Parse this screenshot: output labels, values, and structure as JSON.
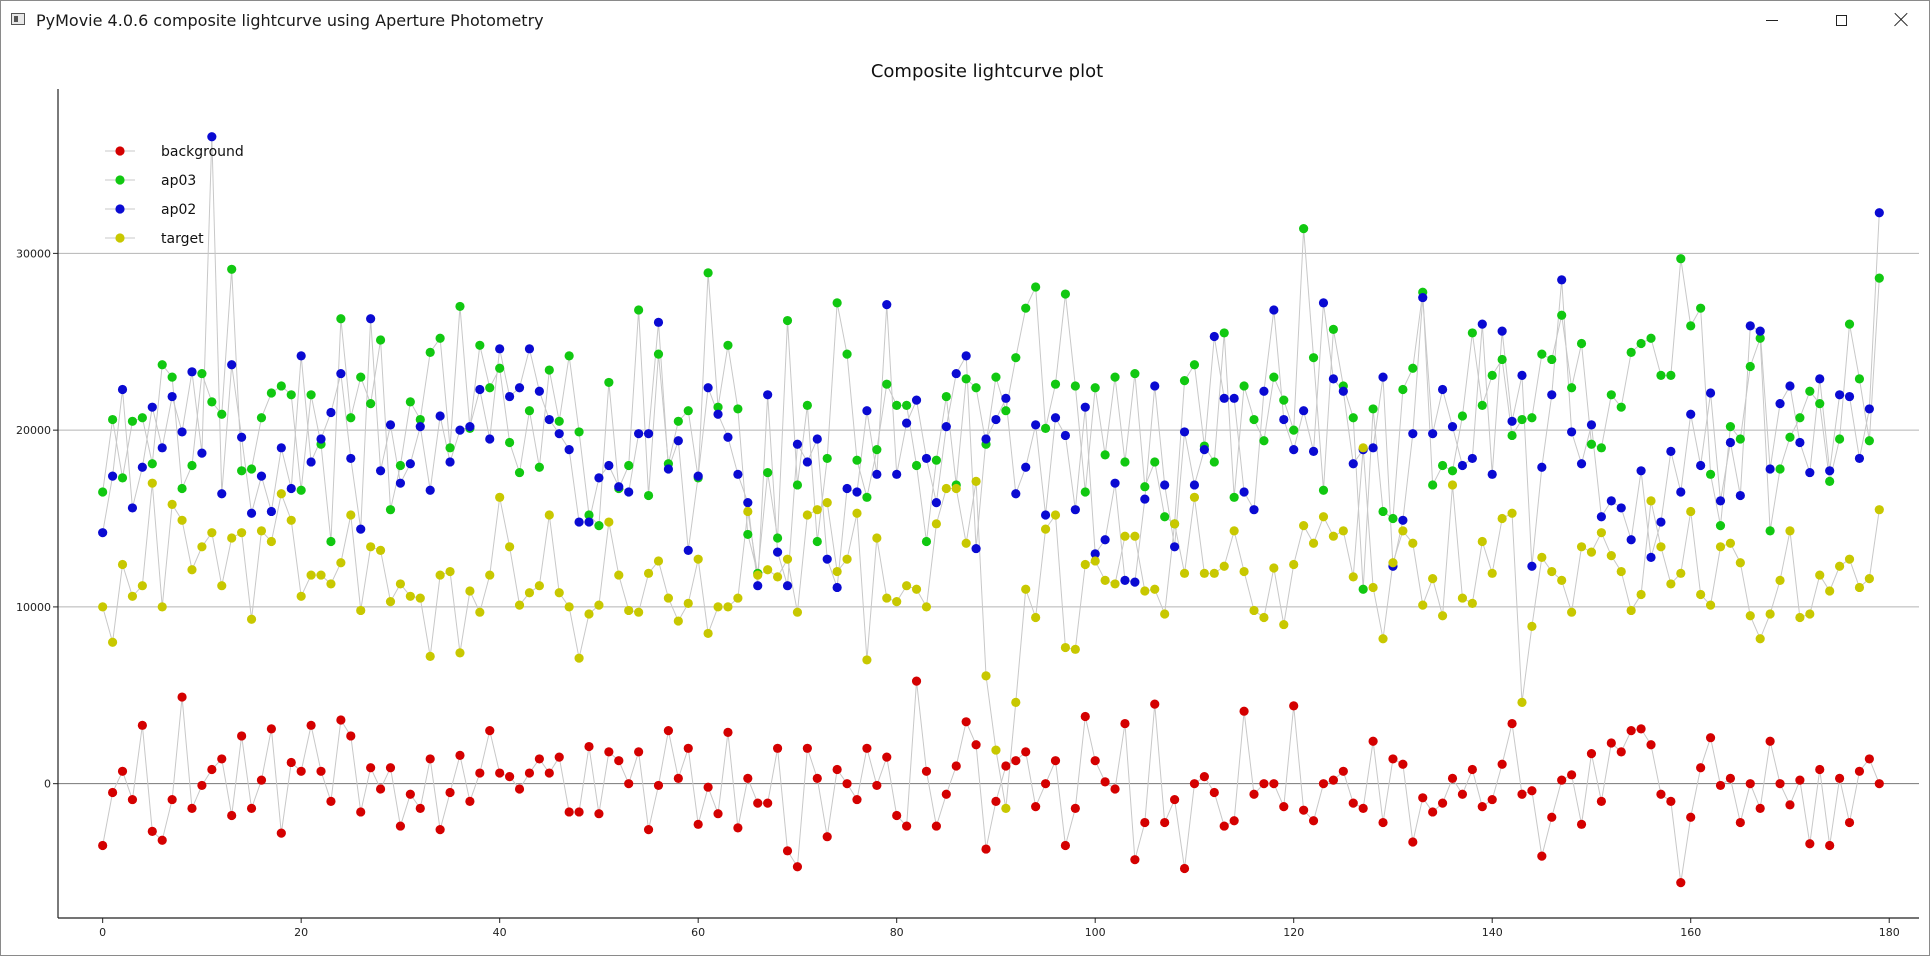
{
  "window": {
    "title": "PyMovie 4.0.6 composite lightcurve using Aperture Photometry",
    "controls": {
      "minimize_icon": "minimize-icon",
      "maximize_icon": "maximize-icon",
      "close_icon": "close-icon"
    }
  },
  "chart_data": {
    "type": "scatter",
    "title": "Composite lightcurve plot",
    "xlabel": "",
    "ylabel": "",
    "xlim": [
      -4.5,
      183
    ],
    "ylim": [
      -7600,
      39300
    ],
    "x_ticks": [
      0,
      20,
      40,
      60,
      80,
      100,
      120,
      140,
      160,
      180
    ],
    "y_ticks": [
      0,
      10000,
      20000,
      30000
    ],
    "grid": "horizontal",
    "legend_position": "top-left",
    "connect_points": true,
    "line_color": "#c8c8c8",
    "series": [
      {
        "name": "background",
        "color": "#d40000",
        "values": [
          -3500,
          -500,
          700,
          -900,
          3300,
          -2700,
          -3200,
          -900,
          4900,
          -1400,
          -100,
          800,
          1400,
          -1800,
          2700,
          -1400,
          200,
          3100,
          -2800,
          1200,
          700,
          3300,
          700,
          -1000,
          3600,
          2700,
          -1600,
          900,
          -300,
          900,
          -2400,
          -600,
          -1400,
          1400,
          -2600,
          -500,
          1600,
          -1000,
          600,
          3000,
          600,
          400,
          -300,
          600,
          1400,
          600,
          1500,
          -1600,
          -1600,
          2100,
          -1700,
          1800,
          1300,
          0,
          1800,
          -2600,
          -100,
          3000,
          300,
          2000,
          -2300,
          -200,
          -1700,
          2900,
          -2500,
          300,
          -1100,
          -1100,
          2000,
          -3800,
          -4700,
          2000,
          300,
          -3000,
          800,
          0,
          -900,
          2000,
          -100,
          1500,
          -1800,
          -2400,
          5800,
          700,
          -2400,
          -600,
          1000,
          3500,
          2200,
          -3700,
          -1000,
          1000,
          1300,
          1800,
          -1300,
          0,
          1300,
          -3500,
          -1400,
          3800,
          1300,
          100,
          -300,
          3400,
          -4300,
          -2200,
          4500,
          -2200,
          -900,
          -4800,
          0,
          400,
          -500,
          -2400,
          -2100,
          4100,
          -600,
          0,
          0,
          -1300,
          4400,
          -1500,
          -2100,
          0,
          200,
          700,
          -1100,
          -1400,
          2400,
          -2200,
          1400,
          1100,
          -3300,
          -800,
          -1600,
          -1100,
          300,
          -600,
          800,
          -1300,
          -900,
          1100,
          3400,
          -600,
          -400,
          -4100,
          -1900,
          200,
          500,
          -2300,
          1700,
          -1000,
          2300,
          1800,
          3000,
          3100,
          2200,
          -600,
          -1000,
          -5600,
          -1900,
          900,
          2600,
          -100,
          300,
          -2200,
          0,
          -1400,
          2400,
          0,
          -1200,
          200,
          -3400,
          800,
          -3500,
          300,
          -2200,
          700,
          1400,
          0
        ]
      },
      {
        "name": "ap03",
        "color": "#11c811",
        "values": [
          16500,
          20600,
          17300,
          20500,
          20700,
          18100,
          23700,
          23000,
          16700,
          18000,
          23200,
          21600,
          20900,
          29100,
          17700,
          17800,
          20700,
          22100,
          22500,
          22000,
          16600,
          22000,
          19200,
          13700,
          26300,
          20700,
          23000,
          21500,
          25100,
          15500,
          18000,
          21600,
          20600,
          24400,
          25200,
          19000,
          27000,
          20100,
          24800,
          22400,
          23500,
          19300,
          17600,
          21100,
          17900,
          23400,
          20500,
          24200,
          19900,
          15200,
          14600,
          22700,
          16700,
          18000,
          26800,
          16300,
          24300,
          18100,
          20500,
          21100,
          17300,
          28900,
          21300,
          24800,
          21200,
          14100,
          11900,
          17600,
          13900,
          26200,
          16900,
          21400,
          13700,
          18400,
          27200,
          24300,
          18300,
          16200,
          18900,
          22600,
          21400,
          21400,
          18000,
          13700,
          18300,
          21900,
          16900,
          22900,
          22400,
          19200,
          23000,
          21100,
          24100,
          26900,
          28100,
          20100,
          22600,
          27700,
          22500,
          16500,
          22400,
          18600,
          23000,
          18200,
          23200,
          16800,
          18200,
          15100,
          14700,
          22800,
          23700,
          19100,
          18200,
          25500,
          16200,
          22500,
          20600,
          19400,
          23000,
          21700,
          20000,
          31400,
          24100,
          16600,
          25700,
          22500,
          20700,
          11000,
          21200,
          15400,
          15000,
          22300,
          23500,
          27800,
          16900,
          18000,
          17700,
          20800,
          25500,
          21400,
          23100,
          24000,
          19700,
          20600,
          20700,
          24300,
          24000,
          26500,
          22400,
          24900,
          19200,
          19000,
          22000,
          21300,
          24400,
          24900,
          25200,
          23100,
          23100,
          29700,
          25900,
          26900,
          17500,
          14600,
          20200,
          19500,
          23600,
          25200,
          14300,
          17800,
          19600,
          20700,
          22200,
          21500,
          17100,
          19500,
          26000,
          22900,
          19400,
          28600
        ]
      },
      {
        "name": "ap02",
        "color": "#0a0ad2",
        "values": [
          14200,
          17400,
          22300,
          15600,
          17900,
          21300,
          19000,
          21900,
          19900,
          23300,
          18700,
          36600,
          16400,
          23700,
          19600,
          15300,
          17400,
          15400,
          19000,
          16700,
          24200,
          18200,
          19500,
          21000,
          23200,
          18400,
          14400,
          26300,
          17700,
          20300,
          17000,
          18100,
          20200,
          16600,
          20800,
          18200,
          20000,
          20200,
          22300,
          19500,
          24600,
          21900,
          22400,
          24600,
          22200,
          20600,
          19800,
          18900,
          14800,
          14800,
          17300,
          18000,
          16800,
          16500,
          19800,
          19800,
          26100,
          17800,
          19400,
          13200,
          17400,
          22400,
          20900,
          19600,
          17500,
          15900,
          11200,
          22000,
          13100,
          11200,
          19200,
          18200,
          19500,
          12700,
          11100,
          16700,
          16500,
          21100,
          17500,
          27100,
          17500,
          20400,
          21700,
          18400,
          15900,
          20200,
          23200,
          24200,
          13300,
          19500,
          20600,
          21800,
          16400,
          17900,
          20300,
          15200,
          20700,
          19700,
          15500,
          21300,
          13000,
          13800,
          17000,
          11500,
          11400,
          16100,
          22500,
          16900,
          13400,
          19900,
          16900,
          18900,
          25300,
          21800,
          21800,
          16500,
          15500,
          22200,
          26800,
          20600,
          18900,
          21100,
          18800,
          27200,
          22900,
          22200,
          18100,
          18900,
          19000,
          23000,
          12300,
          14900,
          19800,
          27500,
          19800,
          22300,
          20200,
          18000,
          18400,
          26000,
          17500,
          25600,
          20500,
          23100,
          12300,
          17900,
          22000,
          28500,
          19900,
          18100,
          20300,
          15100,
          16000,
          15600,
          13800,
          17700,
          12800,
          14800,
          18800,
          16500,
          20900,
          18000,
          22100,
          16000,
          19300,
          16300,
          25900,
          25600,
          17800,
          21500,
          22500,
          19300,
          17600,
          22900,
          17700,
          22000,
          21900,
          18400,
          21200,
          32300
        ]
      },
      {
        "name": "target",
        "color": "#c8c800",
        "values": [
          10000,
          8000,
          12400,
          10600,
          11200,
          17000,
          10000,
          15800,
          14900,
          12100,
          13400,
          14200,
          11200,
          13900,
          14200,
          9300,
          14300,
          13700,
          16400,
          14900,
          10600,
          11800,
          11800,
          11300,
          12500,
          15200,
          9800,
          13400,
          13200,
          10300,
          11300,
          10600,
          10500,
          7200,
          11800,
          12000,
          7400,
          10900,
          9700,
          11800,
          16200,
          13400,
          10100,
          10800,
          11200,
          15200,
          10800,
          10000,
          7100,
          9600,
          10100,
          14800,
          11800,
          9800,
          9700,
          11900,
          12600,
          10500,
          9200,
          10200,
          12700,
          8500,
          10000,
          10000,
          10500,
          15400,
          11800,
          12100,
          11700,
          12700,
          9700,
          15200,
          15500,
          15900,
          12000,
          12700,
          15300,
          7000,
          13900,
          10500,
          10300,
          11200,
          11000,
          10000,
          14700,
          16700,
          16700,
          13600,
          17100,
          6100,
          1900,
          -1400,
          4600,
          11000,
          9400,
          14400,
          15200,
          7700,
          7600,
          12400,
          12600,
          11500,
          11300,
          14000,
          14000,
          10900,
          11000,
          9600,
          14700,
          11900,
          16200,
          11900,
          11900,
          12300,
          14300,
          12000,
          9800,
          9400,
          12200,
          9000,
          12400,
          14600,
          13600,
          15100,
          14000,
          14300,
          11700,
          19000,
          11100,
          8200,
          12500,
          14300,
          13600,
          10100,
          11600,
          9500,
          16900,
          10500,
          10200,
          13700,
          11900,
          15000,
          15300,
          4600,
          8900,
          12800,
          12000,
          11500,
          9700,
          13400,
          13100,
          14200,
          12900,
          12000,
          9800,
          10700,
          16000,
          13400,
          11300,
          11900,
          15400,
          10700,
          10100,
          13400,
          13600,
          12500,
          9500,
          8200,
          9600,
          11500,
          14300,
          9400,
          9600,
          11800,
          10900,
          12300,
          12700,
          11100,
          11600,
          15500
        ]
      }
    ]
  }
}
